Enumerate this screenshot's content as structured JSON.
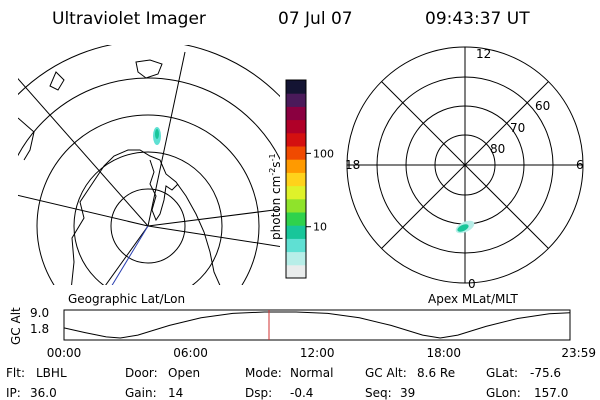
{
  "header": {
    "title": "Ultraviolet Imager",
    "date": "07 Jul 07",
    "time": "09:43:37 UT"
  },
  "maps": {
    "left_label": "Geographic Lat/Lon",
    "right_label": "Apex MLat/MLT",
    "mlt_labels": [
      "12",
      "18",
      "6",
      "0"
    ],
    "mlat_labels": [
      "60",
      "70",
      "80"
    ]
  },
  "colorbar": {
    "unit": "photon cm",
    "unit_exp1": "-2",
    "unit_mid": "s",
    "unit_exp2": "-1",
    "ticks": [
      {
        "value": 100,
        "label": "100"
      },
      {
        "value": 10,
        "label": "10"
      }
    ],
    "colors": [
      "#e9ecec",
      "#b7eee8",
      "#5fe0d3",
      "#18c69a",
      "#2fd24c",
      "#8fe32b",
      "#dff22a",
      "#ffd21b",
      "#ff9a00",
      "#f04a00",
      "#d41010",
      "#b00028",
      "#8a0040",
      "#4a1a5a",
      "#141433"
    ]
  },
  "chart_data": {
    "type": "line",
    "title": "",
    "ylabel": "GC Alt",
    "yticks": [
      "9.0",
      "1.8"
    ],
    "ylim": [
      1.8,
      9.0
    ],
    "xlim": [
      "00:00",
      "23:59"
    ],
    "xticks": [
      "00:00",
      "06:00",
      "12:00",
      "18:00",
      "23:59"
    ],
    "series": [
      {
        "values": [
          {
            "x": "00:00",
            "y": 4.6
          },
          {
            "x": "01:00",
            "y": 3.3
          },
          {
            "x": "02:00",
            "y": 2.1
          },
          {
            "x": "02:40",
            "y": 1.8
          },
          {
            "x": "03:30",
            "y": 2.6
          },
          {
            "x": "05:00",
            "y": 5.3
          },
          {
            "x": "06:30",
            "y": 7.4
          },
          {
            "x": "08:00",
            "y": 8.6
          },
          {
            "x": "09:30",
            "y": 9.0
          },
          {
            "x": "11:00",
            "y": 9.0
          },
          {
            "x": "12:30",
            "y": 8.6
          },
          {
            "x": "14:00",
            "y": 7.4
          },
          {
            "x": "15:30",
            "y": 5.3
          },
          {
            "x": "17:00",
            "y": 2.6
          },
          {
            "x": "17:50",
            "y": 1.8
          },
          {
            "x": "18:40",
            "y": 2.6
          },
          {
            "x": "20:00",
            "y": 5.0
          },
          {
            "x": "21:30",
            "y": 7.2
          },
          {
            "x": "23:00",
            "y": 8.5
          },
          {
            "x": "23:59",
            "y": 8.8
          }
        ]
      }
    ],
    "marker": "09:43",
    "marker_color": "#d03030"
  },
  "status": {
    "flt_label": "Flt:",
    "flt": "LBHL",
    "door_label": "Door:",
    "door": "Open",
    "mode_label": "Mode:",
    "mode": "Normal",
    "gcalt_label": "GC Alt:",
    "gcalt": "8.6 Re",
    "glat_label": "GLat:",
    "glat": "-75.6",
    "ip_label": "IP:",
    "ip": "36.0",
    "gain_label": "Gain:",
    "gain": "14",
    "dsp_label": "Dsp:",
    "dsp": "-0.4",
    "seq_label": "Seq:",
    "seq": "39",
    "glon_label": "GLon:",
    "glon": "157.0"
  }
}
